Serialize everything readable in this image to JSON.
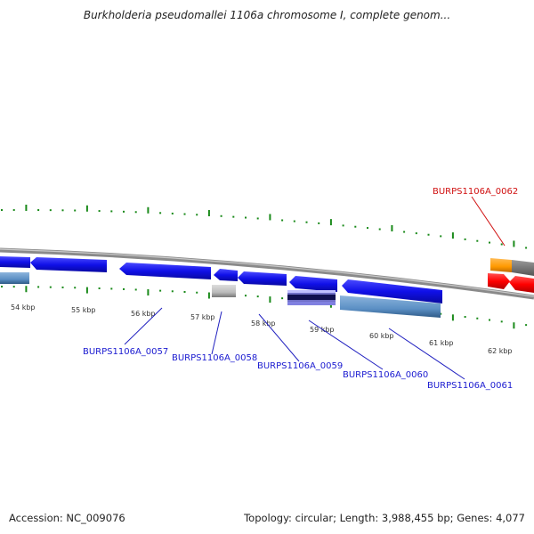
{
  "title": "Burkholderia pseudomallei 1106a chromosome I, complete genom...",
  "footer": {
    "accession": "Accession: NC_009076",
    "summary": "Topology: circular; Length: 3,988,455 bp; Genes: 4,077"
  },
  "scale_labels": [
    "54 kbp",
    "55 kbp",
    "56 kbp",
    "57 kbp",
    "58 kbp",
    "59 kbp",
    "60 kbp",
    "61 kbp",
    "62 kbp"
  ],
  "gene_labels": [
    {
      "text": "BURPS1106A_0057",
      "color": "#1a1ad0"
    },
    {
      "text": "BURPS1106A_0058",
      "color": "#1a1ad0"
    },
    {
      "text": "BURPS1106A_0059",
      "color": "#1a1ad0"
    },
    {
      "text": "BURPS1106A_0060",
      "color": "#1a1ad0"
    },
    {
      "text": "BURPS1106A_0061",
      "color": "#1a1ad0"
    },
    {
      "text": "BURPS1106A_0062",
      "color": "#d01010"
    }
  ],
  "colors": {
    "backbone": "#808080",
    "gene_blue": "#1010e8",
    "gene_red": "#ff0000",
    "gene_orange": "#ff9900",
    "steelblue": "#5b8fc4",
    "tick_green": "#1a8a1a",
    "gray_feature": "#b8b8b8"
  }
}
